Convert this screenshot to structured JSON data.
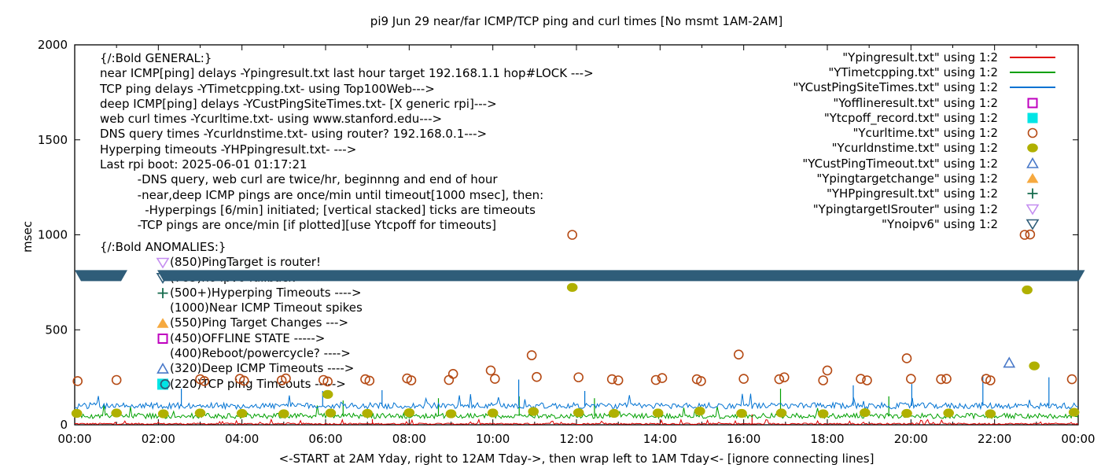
{
  "title": "pi9 Jun 29  near/far ICMP/TCP ping and curl times [No msmt 1AM-2AM]",
  "colors": {
    "red": "#e00000",
    "green": "#00a000",
    "blue": "#0072d2",
    "magenta": "#bf00bf",
    "cyan": "#00e5e5",
    "brown": "#b54a14",
    "olive": "#b0b000",
    "blue2": "#4878c8",
    "orange": "#f6a93f",
    "green_dark": "#166b4d",
    "violet": "#c48df0",
    "teal_dark": "#2f5d79",
    "axis": "#000000",
    "text": "#000000"
  },
  "general": {
    "lines": [
      "{/:Bold GENERAL:}",
      "near ICMP[ping] delays -Ypingresult.txt last hour target 192.168.1.1 hop#LOCK --->",
      "TCP ping delays -YTimetcpping.txt- using Top100Web--->",
      "deep ICMP[ping] delays -YCustPingSiteTimes.txt- [X generic rpi]--->",
      "web curl times -Ycurltime.txt- using www.stanford.edu--->",
      "DNS query times -Ycurldnstime.txt- using router? 192.168.0.1--->",
      "Hyperping timeouts -YHPpingresult.txt- --->",
      "Last rpi boot: 2025-06-01 01:17:21",
      "          -DNS query, web curl are twice/hr, beginnng and end of hour",
      "          -near,deep ICMP pings are once/min until timeout[1000 msec], then:",
      "            -Hyperpings [6/min] initiated; [vertical stacked] ticks are timeouts",
      "          -TCP pings are once/min [if plotted][use Ytcpoff for timeouts]"
    ]
  },
  "anomalies": {
    "lines": [
      {
        "marker": "none",
        "color": "text",
        "label": "{/:Bold ANOMALIES:}"
      },
      {
        "marker": "tri-down-open",
        "color": "violet",
        "label": "(850)PingTarget is router!"
      },
      {
        "marker": "tri-down-open",
        "color": "teal_dark",
        "label": "(785)no ipv6 fallback ---->"
      },
      {
        "marker": "plus",
        "color": "green_dark",
        "label": "(500+)Hyperping Timeouts ---->"
      },
      {
        "marker": "none",
        "color": "text",
        "label": "(1000)Near ICMP Timeout spikes"
      },
      {
        "marker": "tri-up-filled",
        "color": "orange",
        "label": "(550)Ping Target Changes --->"
      },
      {
        "marker": "square-open",
        "color": "magenta",
        "label": "(450)OFFLINE STATE ----->"
      },
      {
        "marker": "none",
        "color": "text",
        "label": "(400)Reboot/powercycle? ---->"
      },
      {
        "marker": "tri-up-open",
        "color": "blue2",
        "label": "(320)Deep ICMP Timeouts ---->"
      },
      {
        "marker": "square-cyan-circle",
        "color": "cyan",
        "label": "(220)TCP ping Timeouts ----->"
      }
    ]
  },
  "legend": {
    "items": [
      {
        "label": "\"Ypingresult.txt\" using 1:2",
        "glyph": "line",
        "color": "red"
      },
      {
        "label": "\"YTimetcpping.txt\" using 1:2",
        "glyph": "line",
        "color": "green"
      },
      {
        "label": "\"YCustPingSiteTimes.txt\" using 1:2",
        "glyph": "line",
        "color": "blue"
      },
      {
        "label": "\"Yofflineresult.txt\" using 1:2",
        "glyph": "square-open",
        "color": "magenta"
      },
      {
        "label": "\"Ytcpoff_record.txt\" using 1:2",
        "glyph": "square-filled",
        "color": "cyan"
      },
      {
        "label": "\"Ycurltime.txt\" using 1:2",
        "glyph": "circle-open",
        "color": "brown"
      },
      {
        "label": "\"Ycurldnstime.txt\" using 1:2",
        "glyph": "circle-filled",
        "color": "olive"
      },
      {
        "label": "\"YCustPingTimeout.txt\" using 1:2",
        "glyph": "tri-up-open",
        "color": "blue2"
      },
      {
        "label": "\"Ypingtargetchange\" using 1:2",
        "glyph": "tri-up-filled",
        "color": "orange"
      },
      {
        "label": "\"YHPpingresult.txt\" using 1:2",
        "glyph": "plus",
        "color": "green_dark"
      },
      {
        "label": "\"YpingtargetISrouter\" using 1:2",
        "glyph": "tri-down-open",
        "color": "violet"
      },
      {
        "label": "\"Ynoipv6\" using 1:2",
        "glyph": "tri-down-open",
        "color": "teal_dark"
      }
    ]
  },
  "chart_data": {
    "type": "line",
    "title": "pi9 Jun 29  near/far ICMP/TCP ping and curl times [No msmt 1AM-2AM]",
    "xlabel": "<-START at 2AM Yday, right to 12AM Tday->, then wrap left to 1AM Tday<- [ignore connecting lines]",
    "ylabel": "msec",
    "xlim": [
      0,
      24
    ],
    "ylim": [
      0,
      2000
    ],
    "grid": false,
    "legend_position": "top-right",
    "x_tick_labels": [
      "00:00",
      "02:00",
      "04:00",
      "06:00",
      "08:00",
      "10:00",
      "12:00",
      "14:00",
      "16:00",
      "18:00",
      "20:00",
      "22:00",
      "00:00"
    ],
    "x_major_step_hours": 2,
    "x_minor_step_hours": 1,
    "y_ticks": [
      0,
      500,
      1000,
      1500,
      2000
    ],
    "series": [
      {
        "name": "Ypingresult.txt",
        "type": "noisy-line",
        "color": "red",
        "base": 5,
        "noise": 4,
        "spike_rate": 0.05,
        "spike_max": 28,
        "spikes": [
          [
            7.12,
            30
          ],
          [
            16.2,
            55
          ]
        ]
      },
      {
        "name": "YTimetcpping.txt",
        "type": "noisy-line",
        "color": "green",
        "base": 47,
        "noise": 14,
        "spike_rate": 0.02,
        "spike_max": 110,
        "spikes": [
          [
            6.42,
            128
          ],
          [
            8.7,
            140
          ],
          [
            10.63,
            150
          ],
          [
            12.43,
            140
          ],
          [
            16.88,
            190
          ],
          [
            19.47,
            150
          ]
        ]
      },
      {
        "name": "YCustPingSiteTimes.txt",
        "type": "noisy-line",
        "color": "blue",
        "base": 100,
        "noise": 16,
        "spike_rate": 0.03,
        "spike_max": 165,
        "spikes": [
          [
            2.55,
            190
          ],
          [
            5.93,
            178
          ],
          [
            7.35,
            182
          ],
          [
            10.62,
            238
          ],
          [
            12.2,
            178
          ],
          [
            18.62,
            208
          ],
          [
            20.02,
            215
          ],
          [
            21.72,
            262
          ],
          [
            23.3,
            250
          ]
        ]
      },
      {
        "name": "Yofflineresult.txt",
        "type": "scatter",
        "marker": "square-open",
        "color": "magenta",
        "points": []
      },
      {
        "name": "Ytcpoff_record.txt",
        "type": "scatter",
        "marker": "square-filled",
        "color": "cyan",
        "points": []
      },
      {
        "name": "Ycurltime.txt",
        "type": "scatter",
        "marker": "circle-open",
        "color": "brown",
        "points": [
          [
            0.07,
            230
          ],
          [
            1.0,
            236
          ],
          [
            3.0,
            240
          ],
          [
            3.1,
            230
          ],
          [
            3.95,
            242
          ],
          [
            4.05,
            232
          ],
          [
            4.95,
            234
          ],
          [
            5.05,
            244
          ],
          [
            5.95,
            236
          ],
          [
            6.05,
            228
          ],
          [
            6.95,
            240
          ],
          [
            7.05,
            232
          ],
          [
            7.95,
            244
          ],
          [
            8.05,
            234
          ],
          [
            8.95,
            236
          ],
          [
            9.05,
            268
          ],
          [
            9.95,
            286
          ],
          [
            10.05,
            242
          ],
          [
            10.93,
            366
          ],
          [
            11.05,
            252
          ],
          [
            11.9,
            1000
          ],
          [
            12.05,
            250
          ],
          [
            12.85,
            240
          ],
          [
            13.0,
            234
          ],
          [
            13.9,
            236
          ],
          [
            14.05,
            246
          ],
          [
            14.88,
            240
          ],
          [
            14.98,
            230
          ],
          [
            15.88,
            370
          ],
          [
            16.0,
            242
          ],
          [
            16.85,
            240
          ],
          [
            16.97,
            250
          ],
          [
            17.9,
            234
          ],
          [
            18.0,
            286
          ],
          [
            18.8,
            242
          ],
          [
            18.95,
            234
          ],
          [
            19.9,
            350
          ],
          [
            20.0,
            242
          ],
          [
            20.72,
            240
          ],
          [
            20.85,
            242
          ],
          [
            21.8,
            242
          ],
          [
            21.9,
            234
          ],
          [
            22.72,
            1000
          ],
          [
            22.85,
            1002
          ],
          [
            23.85,
            240
          ]
        ]
      },
      {
        "name": "Ycurldnstime.txt",
        "type": "scatter",
        "marker": "circle-filled",
        "color": "olive",
        "points": [
          [
            0.05,
            60
          ],
          [
            1.0,
            62
          ],
          [
            2.12,
            58
          ],
          [
            3.0,
            62
          ],
          [
            4.0,
            60
          ],
          [
            5.0,
            58
          ],
          [
            6.05,
            160
          ],
          [
            6.12,
            62
          ],
          [
            7.0,
            60
          ],
          [
            8.0,
            64
          ],
          [
            9.0,
            58
          ],
          [
            10.0,
            62
          ],
          [
            10.97,
            70
          ],
          [
            11.9,
            723
          ],
          [
            12.05,
            64
          ],
          [
            12.9,
            60
          ],
          [
            13.95,
            62
          ],
          [
            14.95,
            72
          ],
          [
            15.95,
            60
          ],
          [
            16.9,
            62
          ],
          [
            17.9,
            58
          ],
          [
            18.9,
            64
          ],
          [
            19.9,
            60
          ],
          [
            20.9,
            62
          ],
          [
            21.9,
            58
          ],
          [
            22.78,
            710
          ],
          [
            22.95,
            310
          ],
          [
            23.9,
            66
          ]
        ]
      },
      {
        "name": "YCustPingTimeout.txt",
        "type": "scatter",
        "marker": "tri-up-open",
        "color": "blue2",
        "points": [
          [
            22.35,
            325
          ]
        ]
      },
      {
        "name": "Ypingtargetchange",
        "type": "scatter",
        "marker": "tri-up-filled",
        "color": "orange",
        "points": []
      },
      {
        "name": "YHPpingresult.txt",
        "type": "scatter",
        "marker": "plus",
        "color": "green_dark",
        "points": []
      },
      {
        "name": "YpingtargetISrouter",
        "type": "scatter",
        "marker": "tri-down-open",
        "color": "violet",
        "points": []
      },
      {
        "name": "Ynoipv6",
        "type": "band",
        "color": "teal_dark",
        "y": 785,
        "half_height_msec": 29,
        "segments": [
          [
            0.0,
            1.26
          ],
          [
            1.975,
            24.16
          ]
        ]
      }
    ]
  }
}
